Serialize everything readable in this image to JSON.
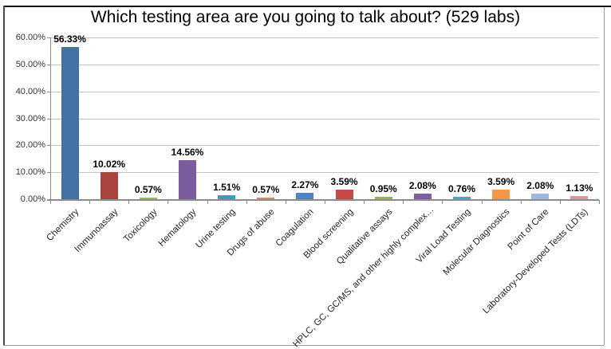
{
  "chart_data": {
    "type": "bar",
    "title": "Which testing area are you going to talk about? (529 labs)",
    "categories": [
      "Chemistry",
      "Immunoassay",
      "Toxicology",
      "Hematology",
      "Urine testing",
      "Drugs of abuse",
      "Coagulation",
      "Blood screening",
      "Qualitative assays",
      "HPLC, GC, GC/MS, and other highly complex…",
      "Viral Load Testing",
      "Molecular Diagnostics",
      "Point of Care",
      "Laboratory-Developed Tests (LDTs)"
    ],
    "values": [
      56.33,
      10.02,
      0.57,
      14.56,
      1.51,
      0.57,
      2.27,
      3.59,
      0.95,
      2.08,
      0.76,
      3.59,
      2.08,
      1.13
    ],
    "data_labels": [
      "56.33%",
      "10.02%",
      "0.57%",
      "14.56%",
      "1.51%",
      "0.57%",
      "2.27%",
      "3.59%",
      "0.95%",
      "2.08%",
      "0.76%",
      "3.59%",
      "2.08%",
      "1.13%"
    ],
    "bar_colors": [
      "#4472A8",
      "#A9443F",
      "#99B959",
      "#7A5DA0",
      "#3C9FB8",
      "#C78E5E",
      "#4E84C4",
      "#C54A46",
      "#95B554",
      "#7D5FA5",
      "#3FA8C5",
      "#F79646",
      "#9FB9DC",
      "#D89B97"
    ],
    "y_ticks": [
      "0.00%",
      "10.00%",
      "20.00%",
      "30.00%",
      "40.00%",
      "50.00%",
      "60.00%"
    ],
    "ylim": [
      0,
      60
    ],
    "grid": true,
    "legend": "none",
    "xlabel": "",
    "ylabel": ""
  },
  "colors": {
    "gridline": "#c3c3c3",
    "axis": "#8c8c8c",
    "tick_label": "#333333",
    "frame_dark": "#111111",
    "frame_light": "#9a9a9a",
    "background": "#ffffff"
  }
}
